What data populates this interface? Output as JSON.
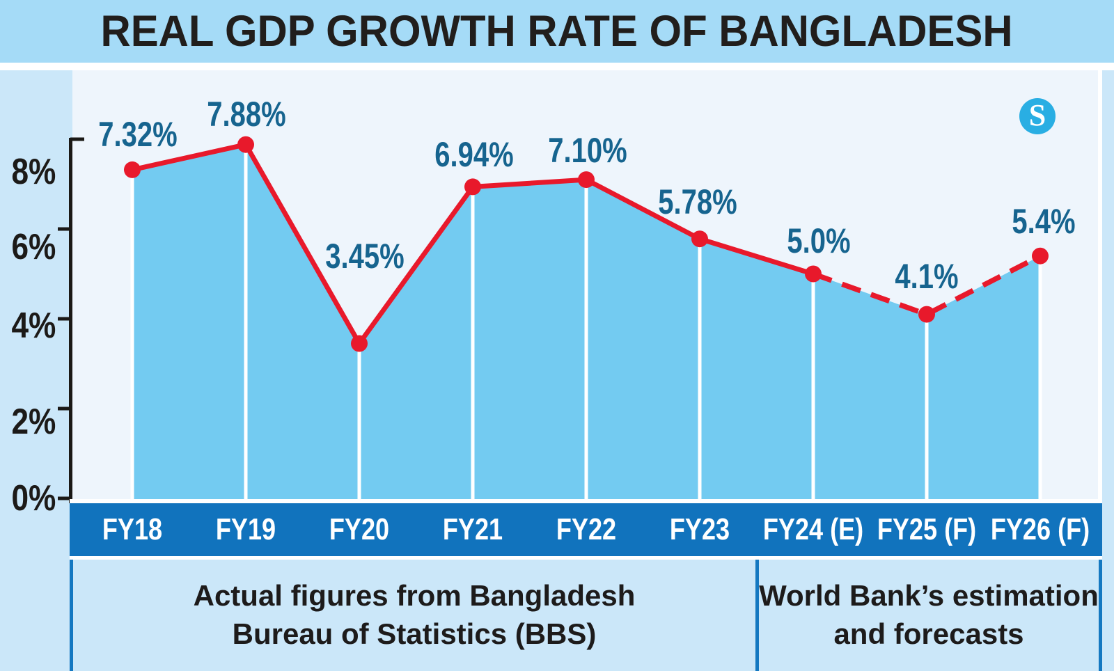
{
  "logo": {
    "letter": "S"
  },
  "colors": {
    "title_bg": "#a5dbf7",
    "outer_bg": "#cbe7f9",
    "plot_bg": "#eef5fc",
    "bar_fill": "#73cbf1",
    "line_red": "#e8192b",
    "band_blue": "#1173bd",
    "divider_blue": "#1478c1",
    "label_teal": "#16648f",
    "logo_blue": "#29aee3",
    "axis_black": "#1b1916"
  },
  "chart_data": {
    "type": "area",
    "title": "REAL GDP GROWTH RATE OF BANGLADESH",
    "categories": [
      "FY18",
      "FY19",
      "FY20",
      "FY21",
      "FY22",
      "FY23",
      "FY24 (E)",
      "FY25 (F)",
      "FY26 (F)"
    ],
    "values": [
      7.32,
      7.88,
      3.45,
      6.94,
      7.1,
      5.78,
      5.0,
      4.1,
      5.4
    ],
    "point_labels": [
      "7.32%",
      "7.88%",
      "3.45%",
      "6.94%",
      "7.10%",
      "5.78%",
      "5.0%",
      "4.1%",
      "5.4%"
    ],
    "y_tick_labels": [
      "8%",
      "6%",
      "4%",
      "2%",
      "0%"
    ],
    "y_ticks_percent": [
      8,
      6,
      4,
      2,
      0
    ],
    "ylim": [
      0,
      8.8
    ],
    "grid": false,
    "legend": "none",
    "marker": "circle",
    "solid_through_index": 6,
    "annotations": [
      {
        "lines": [
          "Actual figures from Bangladesh",
          "Bureau of Statistics (BBS)"
        ]
      },
      {
        "lines": [
          "World Bank’s estimation",
          "and forecasts"
        ]
      }
    ]
  }
}
